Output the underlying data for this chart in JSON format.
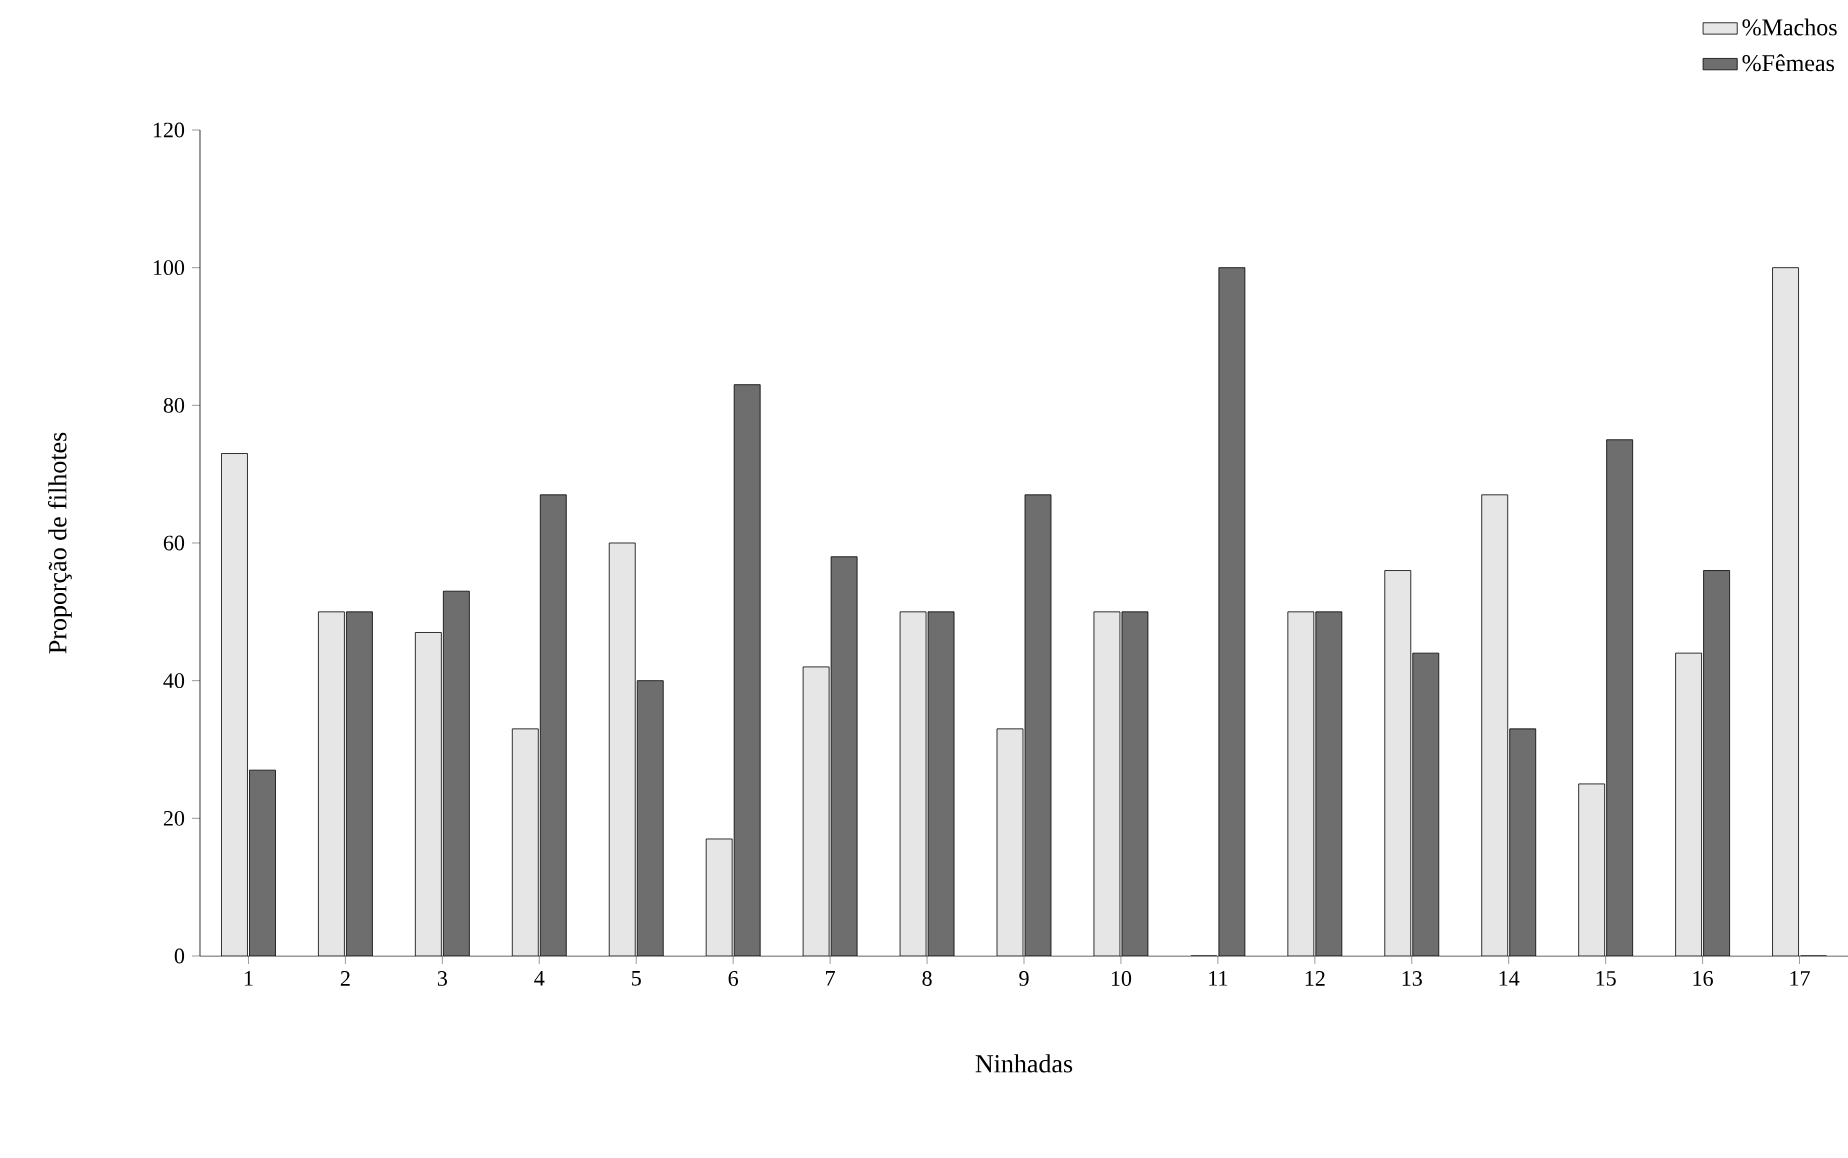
{
  "chart_data": {
    "type": "bar",
    "xlabel": "Ninhadas",
    "ylabel": "Proporção de filhotes",
    "categories": [
      "1",
      "2",
      "3",
      "4",
      "5",
      "6",
      "7",
      "8",
      "9",
      "10",
      "11",
      "12",
      "13",
      "14",
      "15",
      "16",
      "17"
    ],
    "series": [
      {
        "name": "%Machos",
        "color": "#e6e6e6",
        "values": [
          73,
          50,
          47,
          33,
          60,
          17,
          42,
          50,
          33,
          50,
          0,
          50,
          56,
          67,
          25,
          44,
          100
        ]
      },
      {
        "name": "%Fêmeas",
        "color": "#6e6e6e",
        "values": [
          27,
          50,
          53,
          67,
          40,
          83,
          58,
          50,
          67,
          50,
          100,
          50,
          44,
          33,
          75,
          56,
          0
        ]
      }
    ],
    "ylim": [
      0,
      120
    ],
    "yticks": [
      0,
      20,
      40,
      60,
      80,
      100,
      120
    ],
    "grid": false,
    "legend": "top right"
  }
}
